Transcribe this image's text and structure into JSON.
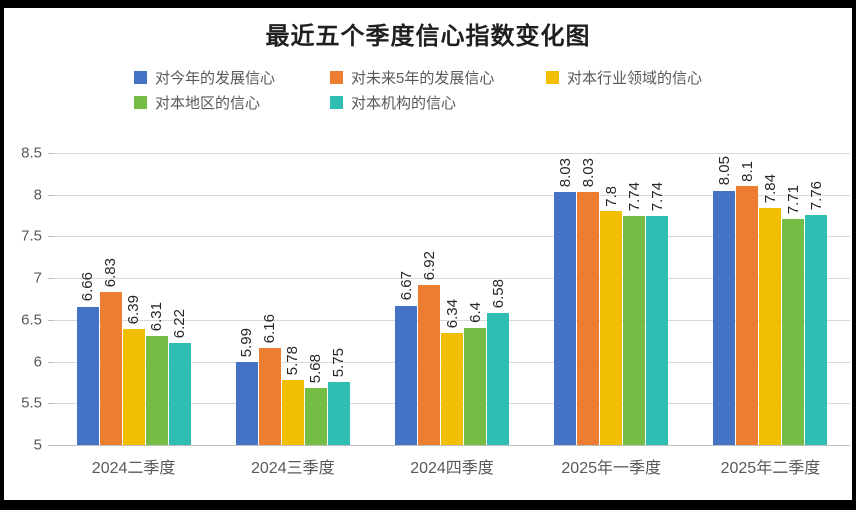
{
  "title": "最近五个季度信心指数变化图",
  "chart_data": {
    "type": "bar",
    "title": "最近五个季度信心指数变化图",
    "categories": [
      "2024二季度",
      "2024三季度",
      "2024四季度",
      "2025年一季度",
      "2025年二季度"
    ],
    "series": [
      {
        "name": "对今年的发展信心",
        "color": "#4472C4",
        "values": [
          6.66,
          5.99,
          6.67,
          8.03,
          8.05
        ],
        "labels": [
          "6.66",
          "5.99",
          "6.67",
          "8.03",
          "8.05"
        ]
      },
      {
        "name": "对未来5年的发展信心",
        "color": "#ED7D31",
        "values": [
          6.83,
          6.16,
          6.92,
          8.03,
          8.1
        ],
        "labels": [
          "6.83",
          "6.16",
          "6.92",
          "8.03",
          "8.1"
        ]
      },
      {
        "name": "对本行业领域的信心",
        "color": "#F2BE02",
        "values": [
          6.39,
          5.78,
          6.34,
          7.8,
          7.84
        ],
        "labels": [
          "6.39",
          "5.78",
          "6.34",
          "7.8",
          "7.84"
        ]
      },
      {
        "name": "对本地区的信心",
        "color": "#74BC43",
        "values": [
          6.31,
          5.68,
          6.4,
          7.74,
          7.71
        ],
        "labels": [
          "6.31",
          "5.68",
          "6.4",
          "7.74",
          "7.71"
        ]
      },
      {
        "name": "对本机构的信心",
        "color": "#2FBFB2",
        "values": [
          6.22,
          5.75,
          6.58,
          7.74,
          7.76
        ],
        "labels": [
          "6.22",
          "5.75",
          "6.58",
          "7.74",
          "7.76"
        ]
      }
    ],
    "ylim": [
      5,
      8.5
    ],
    "ytick_step": 0.5,
    "yticks": [
      "8.5",
      "8",
      "7.5",
      "7",
      "6.5",
      "6",
      "5.5",
      "5"
    ],
    "grid": true,
    "legend_position": "top",
    "data_label_rotation": -90,
    "axis_text_color": "#595959",
    "gridline_color": "#D9D9D9"
  }
}
